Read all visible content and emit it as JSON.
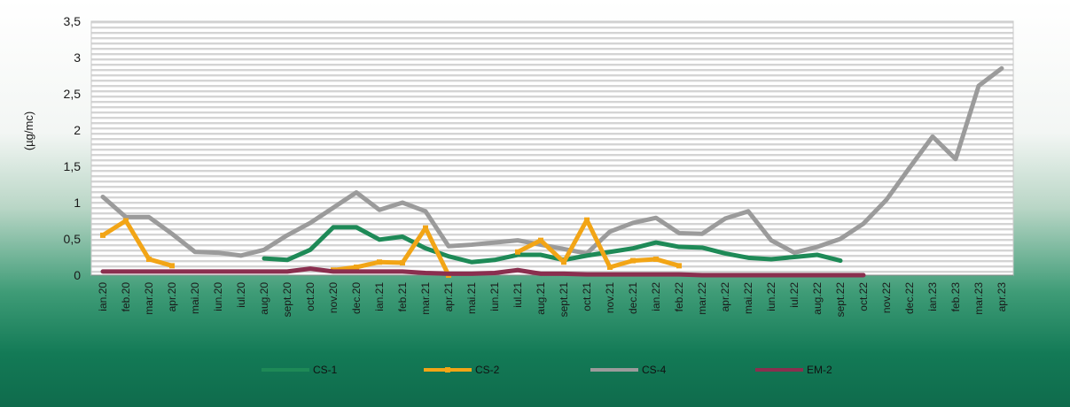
{
  "chart_data": {
    "type": "line",
    "title": "",
    "xlabel": "",
    "ylabel": "(µg/mc)",
    "ylim": [
      0,
      3.5
    ],
    "yticks": [
      "0",
      "0,5",
      "1",
      "1,5",
      "2",
      "2,5",
      "3",
      "3,5"
    ],
    "grid": true,
    "legend_position": "bottom",
    "categories": [
      "ian.20",
      "feb.20",
      "mar.20",
      "apr.20",
      "mai.20",
      "iun.20",
      "iul.20",
      "aug.20",
      "sept.20",
      "oct.20",
      "nov.20",
      "dec.20",
      "ian.21",
      "feb.21",
      "mar.21",
      "apr.21",
      "mai.21",
      "iun.21",
      "iul.21",
      "aug.21",
      "sept.21",
      "oct.21",
      "nov.21",
      "dec.21",
      "ian.22",
      "feb.22",
      "mar.22",
      "apr.22",
      "mai.22",
      "iun.22",
      "iul.22",
      "aug.22",
      "sept.22",
      "oct.22",
      "nov.22",
      "dec.22",
      "ian.23",
      "feb.23",
      "mar.23",
      "apr.23"
    ],
    "series": [
      {
        "name": "CS-1",
        "color": "#1e8a57",
        "marker": false,
        "values": [
          null,
          null,
          null,
          null,
          null,
          null,
          null,
          0.23,
          0.21,
          0.35,
          0.66,
          0.66,
          0.49,
          0.53,
          0.37,
          0.26,
          0.18,
          0.21,
          0.28,
          0.28,
          0.21,
          0.27,
          0.32,
          0.37,
          0.45,
          0.39,
          0.38,
          0.3,
          0.24,
          0.22,
          0.25,
          0.28,
          0.2,
          null,
          null,
          null,
          null,
          null,
          null,
          null
        ]
      },
      {
        "name": "CS-2",
        "color": "#f2a516",
        "marker": true,
        "values": [
          0.55,
          0.75,
          0.22,
          0.13,
          null,
          null,
          null,
          null,
          null,
          null,
          0.07,
          0.11,
          0.18,
          0.17,
          0.65,
          0.0,
          null,
          null,
          0.32,
          0.48,
          0.18,
          0.76,
          0.11,
          0.2,
          0.22,
          0.13,
          null,
          null,
          null,
          null,
          null,
          null,
          null,
          null,
          null,
          null,
          null,
          null,
          null,
          null
        ]
      },
      {
        "name": "CS-4",
        "color": "#9b9b9b",
        "marker": false,
        "values": [
          1.08,
          0.8,
          0.8,
          0.57,
          0.32,
          0.31,
          0.27,
          0.35,
          0.55,
          0.72,
          0.93,
          1.14,
          0.9,
          1.0,
          0.88,
          0.4,
          0.42,
          0.45,
          0.48,
          0.42,
          0.36,
          0.3,
          0.6,
          0.72,
          0.79,
          0.58,
          0.57,
          0.78,
          0.88,
          0.48,
          0.31,
          0.39,
          0.5,
          0.71,
          1.04,
          1.48,
          1.91,
          1.6,
          2.61,
          2.85
        ]
      },
      {
        "name": "EM-2",
        "color": "#8a2f4f",
        "marker": false,
        "values": [
          0.05,
          0.05,
          0.05,
          0.05,
          0.05,
          0.05,
          0.05,
          0.05,
          0.05,
          0.09,
          0.05,
          0.05,
          0.05,
          0.05,
          0.03,
          0.02,
          0.02,
          0.03,
          0.07,
          0.02,
          0.02,
          0.01,
          0.01,
          0.01,
          0.01,
          0.01,
          0.0,
          0.0,
          0.0,
          0.0,
          0.0,
          0.0,
          0.0,
          0.0,
          null,
          null,
          null,
          null,
          null,
          null
        ]
      }
    ]
  }
}
